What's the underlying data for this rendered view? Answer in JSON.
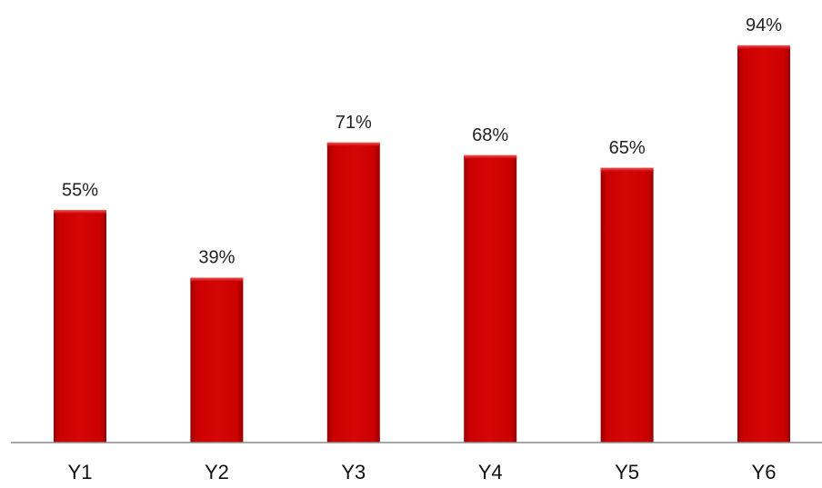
{
  "chart_data": {
    "type": "bar",
    "categories": [
      "Y1",
      "Y2",
      "Y3",
      "Y4",
      "Y5",
      "Y6"
    ],
    "values": [
      55,
      39,
      71,
      68,
      65,
      94
    ],
    "value_labels": [
      "55%",
      "39%",
      "71%",
      "68%",
      "65%",
      "94%"
    ],
    "unit": "%",
    "ylim": [
      0,
      100
    ],
    "grid": false,
    "legend": "none",
    "title": "",
    "xlabel": "",
    "ylabel": "",
    "colors": {
      "bar_fill": "#cc0000",
      "bar_highlight": "#ee3a3a",
      "bar_shade": "#9a0000",
      "axis": "#8c8c8c"
    }
  }
}
